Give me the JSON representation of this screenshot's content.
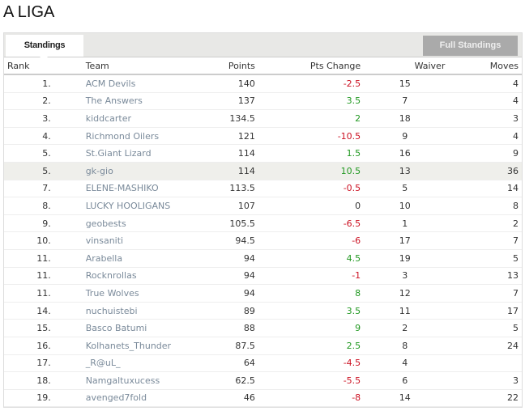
{
  "title": "A LIGA",
  "tabs": {
    "standings": "Standings",
    "full_standings": "Full Standings"
  },
  "columns": [
    "Rank",
    "Team",
    "Points",
    "Pts Change",
    "Waiver",
    "Moves"
  ],
  "rows": [
    [
      "1.",
      "ACM Devils",
      "140",
      "-2.5",
      "15",
      "4"
    ],
    [
      "2.",
      "The Answers",
      "137",
      "3.5",
      "7",
      "4"
    ],
    [
      "3.",
      "kiddcarter",
      "134.5",
      "2",
      "18",
      "3"
    ],
    [
      "4.",
      "Richmond Oilers",
      "121",
      "-10.5",
      "9",
      "4"
    ],
    [
      "5.",
      "St.Giant Lizard",
      "114",
      "1.5",
      "16",
      "9"
    ],
    [
      "5.",
      "gk-gio",
      "114",
      "10.5",
      "13",
      "36"
    ],
    [
      "7.",
      "ELENE-MASHIKO",
      "113.5",
      "-0.5",
      "5",
      "14"
    ],
    [
      "8.",
      "LUCKY HOOLIGANS",
      "107",
      "0",
      "10",
      "8"
    ],
    [
      "9.",
      "geobests",
      "105.5",
      "-6.5",
      "1",
      "2"
    ],
    [
      "10.",
      "vinsaniti",
      "94.5",
      "-6",
      "17",
      "7"
    ],
    [
      "11.",
      "Arabella",
      "94",
      "4.5",
      "19",
      "5"
    ],
    [
      "11.",
      "Rocknrollas",
      "94",
      "-1",
      "3",
      "13"
    ],
    [
      "11.",
      "True Wolves",
      "94",
      "8",
      "12",
      "7"
    ],
    [
      "14.",
      "nuchuistebi",
      "89",
      "3.5",
      "11",
      "17"
    ],
    [
      "15.",
      "Basco Batumi",
      "88",
      "9",
      "2",
      "5"
    ],
    [
      "16.",
      "Kolhanets_Thunder",
      "87.5",
      "2.5",
      "8",
      "24"
    ],
    [
      "17.",
      "_R@uL_",
      "64",
      "-4.5",
      "4",
      ""
    ],
    [
      "18.",
      "Namgaltuxucess",
      "62.5",
      "-5.5",
      "6",
      "3"
    ],
    [
      "19.",
      "avenged7fold",
      "46",
      "-8",
      "14",
      "22"
    ]
  ],
  "highlighted_row": 5,
  "colors": {
    "negative": "#cc1122",
    "positive": "#229922",
    "team_link": "#7a8a9a"
  }
}
